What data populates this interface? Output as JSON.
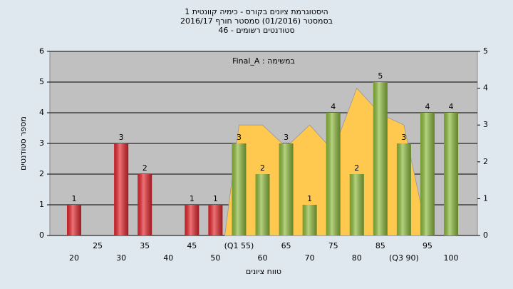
{
  "chart_data": {
    "type": "bar",
    "title": [
      "היסטוגרמת ציונים בקורס - כימיה קוונטית 1",
      "בסמסטר (01/2016) סמסטר חורף 2016/17",
      "46 - סטודנטים רשומים"
    ],
    "annotation": "Final_A : במשימה",
    "x_label": "טווח ציונים",
    "y_label": "מספר סטודנטים",
    "categories": [
      "20",
      "25",
      "30",
      "35",
      "40",
      "45",
      "50",
      "(Q1 55)",
      "60",
      "65",
      "70",
      "75",
      "80",
      "85",
      "(Q3 90)",
      "95",
      "100"
    ],
    "category_values": [
      20,
      25,
      30,
      35,
      40,
      45,
      50,
      55,
      60,
      65,
      70,
      75,
      80,
      85,
      90,
      95,
      100
    ],
    "values": [
      1,
      0,
      3,
      2,
      0,
      1,
      1,
      3,
      2,
      3,
      1,
      4,
      2,
      5,
      3,
      4,
      4
    ],
    "colors": [
      "#e3262c",
      "#e3262c",
      "#e3262c",
      "#e3262c",
      "#e3262c",
      "#e3262c",
      "#e3262c",
      "#8dba3c",
      "#8dba3c",
      "#8dba3c",
      "#8dba3c",
      "#8dba3c",
      "#8dba3c",
      "#8dba3c",
      "#8dba3c",
      "#8dba3c",
      "#8dba3c"
    ],
    "area": {
      "axis": "y2",
      "color": "#ffc84f",
      "x": [
        52,
        55,
        60,
        65,
        70,
        75,
        80,
        85,
        90,
        95
      ],
      "values": [
        0,
        3,
        3,
        2.4,
        3,
        2.3,
        4,
        3.3,
        3,
        0
      ]
    },
    "ylim": [
      0,
      6
    ],
    "yticks": [
      0,
      1,
      2,
      3,
      4,
      5,
      6
    ],
    "y2lim": [
      0,
      5
    ],
    "y2ticks": [
      0,
      1,
      2,
      3,
      4,
      5
    ],
    "grid": true
  }
}
